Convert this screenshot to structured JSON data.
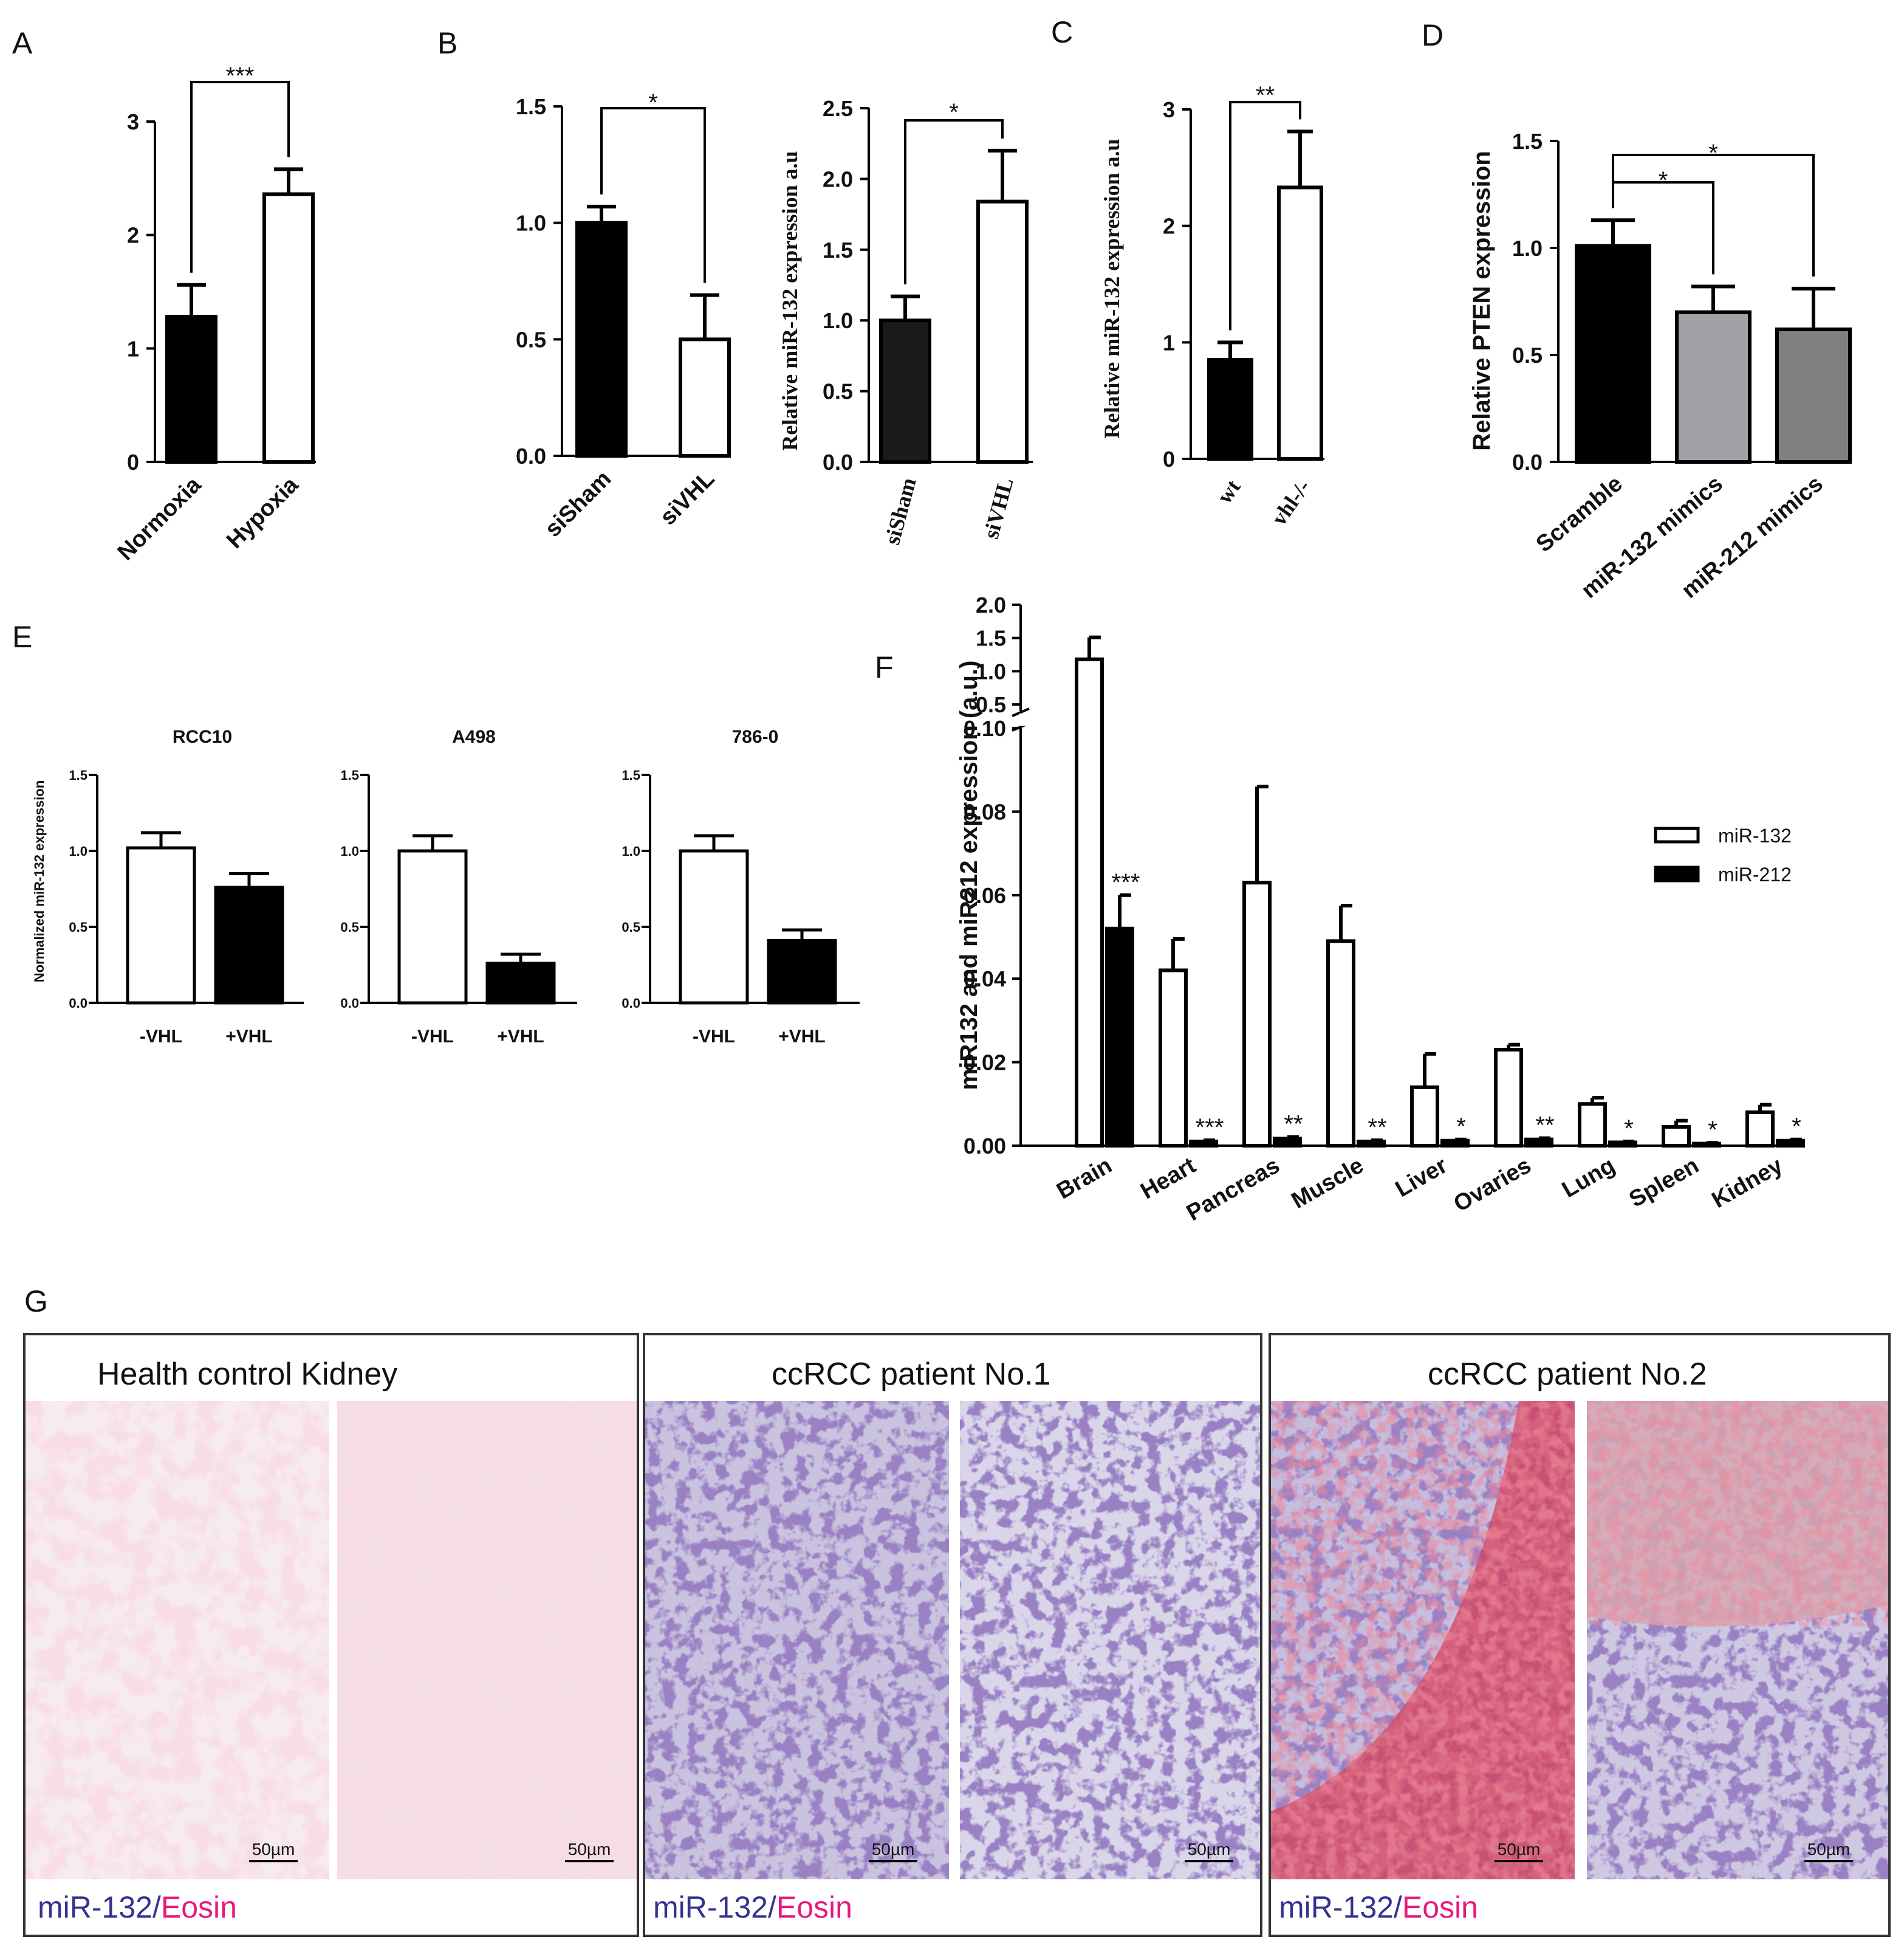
{
  "panel_letters": [
    "A",
    "B",
    "C",
    "D",
    "E",
    "F",
    "G"
  ],
  "chart_data": [
    {
      "id": "A",
      "type": "bar",
      "categories": [
        "Normoxia",
        "Hypoxia"
      ],
      "values": [
        1.28,
        2.36
      ],
      "errors": [
        0.28,
        0.22
      ],
      "fills": [
        "#000000",
        "#ffffff"
      ],
      "ylim": [
        0,
        3
      ],
      "yticks": [
        "0",
        "1",
        "2",
        "3"
      ],
      "ylabel": "",
      "significance": [
        {
          "from": 0,
          "to": 1,
          "label": "***"
        }
      ]
    },
    {
      "id": "B1",
      "type": "bar",
      "categories": [
        "siSham",
        "siVHL"
      ],
      "values": [
        1.0,
        0.5
      ],
      "errors": [
        0.07,
        0.19
      ],
      "fills": [
        "#000000",
        "#ffffff"
      ],
      "ylim": [
        0,
        1.5
      ],
      "yticks": [
        "0.0",
        "0.5",
        "1.0",
        "1.5"
      ],
      "ylabel": "",
      "significance": [
        {
          "from": 0,
          "to": 1,
          "label": "*"
        }
      ]
    },
    {
      "id": "B2",
      "type": "bar",
      "categories": [
        "siSham",
        "siVHL"
      ],
      "values": [
        1.0,
        1.84
      ],
      "errors": [
        0.17,
        0.36
      ],
      "fills": [
        "#1c1a1a",
        "#ffffff"
      ],
      "ylim": [
        0,
        2.5
      ],
      "yticks": [
        "0.0",
        "0.5",
        "1.0",
        "1.5",
        "2.0",
        "2.5"
      ],
      "ylabel": "Relative miR-132 expression a.u",
      "significance": [
        {
          "from": 0,
          "to": 1,
          "label": "*"
        }
      ]
    },
    {
      "id": "C",
      "type": "bar",
      "categories": [
        "wt",
        "vhl-/-"
      ],
      "values": [
        0.85,
        2.33
      ],
      "errors": [
        0.15,
        0.48
      ],
      "fills": [
        "#000000",
        "#ffffff"
      ],
      "ylim": [
        0,
        3
      ],
      "yticks": [
        "0",
        "1",
        "2",
        "3"
      ],
      "ylabel": "Relative miR-132 expression a.u",
      "significance": [
        {
          "from": 0,
          "to": 1,
          "label": "**"
        }
      ]
    },
    {
      "id": "D",
      "type": "bar",
      "categories": [
        "Scramble",
        "miR-132 mimics",
        "miR-212 mimics"
      ],
      "values": [
        1.01,
        0.7,
        0.62
      ],
      "errors": [
        0.12,
        0.12,
        0.19
      ],
      "fills": [
        "#000000",
        "#a0a2a5",
        "#7f8082"
      ],
      "ylim": [
        0,
        1.5
      ],
      "yticks": [
        "0.0",
        "0.5",
        "1.0",
        "1.5"
      ],
      "ylabel": "Relative PTEN expression",
      "significance": [
        {
          "from": 0,
          "to": 1,
          "label": "*"
        },
        {
          "from": 0,
          "to": 2,
          "label": "*"
        }
      ]
    },
    {
      "id": "E1",
      "type": "bar",
      "title": "RCC10",
      "categories": [
        "-VHL",
        "+VHL"
      ],
      "values": [
        1.02,
        0.76
      ],
      "errors": [
        0.1,
        0.09
      ],
      "fills": [
        "#ffffff",
        "#000000"
      ],
      "ylim": [
        0,
        1.5
      ],
      "yticks": [
        "0.0",
        "0.5",
        "1.0",
        "1.5"
      ],
      "ylabel": "Normalized miR-132 expression"
    },
    {
      "id": "E2",
      "type": "bar",
      "title": "A498",
      "categories": [
        "-VHL",
        "+VHL"
      ],
      "values": [
        1.0,
        0.26
      ],
      "errors": [
        0.1,
        0.06
      ],
      "fills": [
        "#ffffff",
        "#000000"
      ],
      "ylim": [
        0,
        1.5
      ],
      "yticks": [
        "0.0",
        "0.5",
        "1.0",
        "1.5"
      ],
      "ylabel": ""
    },
    {
      "id": "E3",
      "type": "bar",
      "title": "786-0",
      "categories": [
        "-VHL",
        "+VHL"
      ],
      "values": [
        1.0,
        0.41
      ],
      "errors": [
        0.1,
        0.07
      ],
      "fills": [
        "#ffffff",
        "#000000"
      ],
      "ylim": [
        0,
        1.5
      ],
      "yticks": [
        "0.0",
        "0.5",
        "1.0",
        "1.5"
      ],
      "ylabel": ""
    },
    {
      "id": "F",
      "type": "bar",
      "categories": [
        "Brain",
        "Heart",
        "Pancreas",
        "Muscle",
        "Liver",
        "Ovaries",
        "Lung",
        "Spleen",
        "Kidney"
      ],
      "series": [
        {
          "name": "miR-132",
          "values": [
            1.18,
            0.042,
            0.063,
            0.049,
            0.014,
            0.023,
            0.01,
            0.0045,
            0.008
          ],
          "errors": [
            0.33,
            0.0075,
            0.023,
            0.0085,
            0.008,
            0.0012,
            0.0015,
            0.0015,
            0.0018
          ]
        },
        {
          "name": "miR-212",
          "values": [
            0.052,
            0.001,
            0.0017,
            0.001,
            0.0012,
            0.0015,
            0.0008,
            0.0005,
            0.0012
          ],
          "errors": [
            0.008,
            0.0003,
            0.0004,
            0.0003,
            0.0003,
            0.0003,
            0.0002,
            0.0002,
            0.0003
          ]
        }
      ],
      "significance": [
        "***",
        "***",
        "**",
        "**",
        "*",
        "**",
        "*",
        "*",
        "*"
      ],
      "ylabel": "miR132 and miR212 expression (a.u.)",
      "yticks_lower": [
        "0.00",
        "0.02",
        "0.04",
        "0.06",
        "0.08",
        "0.10"
      ],
      "yticks_upper": [
        "0.5",
        "1.0",
        "1.5",
        "2.0"
      ],
      "ylim_lower": [
        0,
        0.1
      ],
      "ylim_upper": [
        0.4,
        2.0
      ],
      "legend_position": "right"
    }
  ],
  "histology": {
    "panels": [
      {
        "title": "Health control Kidney",
        "tone": "pink"
      },
      {
        "title": "ccRCC patient No.1",
        "tone": "purple"
      },
      {
        "title": "ccRCC patient No.2",
        "tone": "mixed"
      }
    ],
    "scale_label": "50µm",
    "stain_a": "miR-132",
    "separator": "/",
    "stain_b": "Eosin",
    "colors": {
      "mir132": "#33338f",
      "eosin": "#e6197f"
    }
  }
}
